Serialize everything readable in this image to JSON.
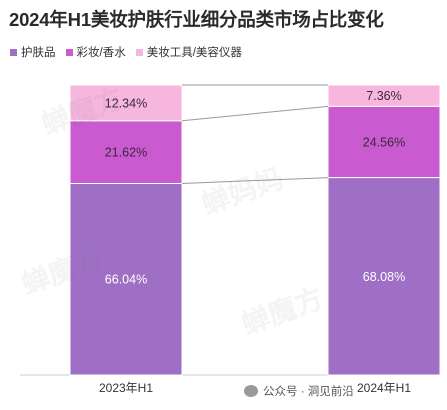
{
  "chart_data": {
    "type": "bar",
    "stacked": true,
    "title": "2024年H1美妆护肤行业细分品类市场占比变化",
    "categories": [
      "2023年H1",
      "2024年H1"
    ],
    "series": [
      {
        "name": "护肤品",
        "color": "#9e6fc4",
        "values": [
          66.04,
          68.08
        ],
        "labels": [
          "66.04%",
          "68.08%"
        ]
      },
      {
        "name": "彩妆/香水",
        "color": "#c95ad0",
        "values": [
          21.62,
          24.56
        ],
        "labels": [
          "21.62%",
          "24.56%"
        ]
      },
      {
        "name": "美妆工具/美容仪器",
        "color": "#f7b6de",
        "values": [
          12.34,
          7.36
        ],
        "labels": [
          "12.34%",
          "7.36%"
        ]
      }
    ],
    "ylim": [
      0,
      100
    ],
    "legend_position": "top-left"
  },
  "footer": {
    "source_text": "公众号 · 洞见前沿"
  },
  "icons": {
    "wechat": "wechat-icon"
  }
}
